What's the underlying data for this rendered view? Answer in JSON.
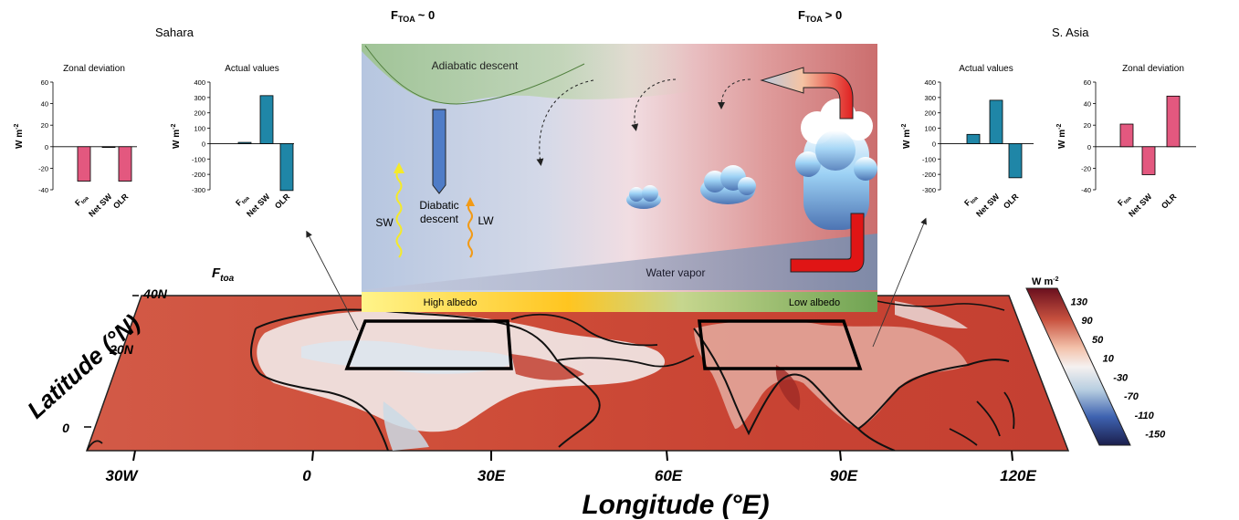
{
  "header": {
    "ftoa_zero": "F",
    "ftoa_zero_sub": "TOA",
    "ftoa_zero_rel": "~ 0",
    "ftoa_pos": "F",
    "ftoa_pos_sub": "TOA",
    "ftoa_pos_rel": ">  0"
  },
  "regions": {
    "left": "Sahara",
    "right": "S. Asia"
  },
  "schematic": {
    "adiabatic": "Adiabatic descent",
    "diabatic_1": "Diabatic",
    "diabatic_2": "descent",
    "sw": "SW",
    "lw": "LW",
    "water_vapor": "Water vapor",
    "high_albedo": "High albedo",
    "low_albedo": "Low albedo",
    "colors": {
      "blue": "#b9c8e0",
      "red": "#cf6d6d",
      "green": "#a9c99b"
    }
  },
  "map": {
    "panel_label": "F",
    "panel_label_sub": "toa",
    "lat_ticks": [
      "40N",
      "20N",
      "0"
    ],
    "lon_ticks": [
      "30W",
      "0",
      "30E",
      "60E",
      "90E",
      "120E"
    ],
    "ylabel": "Latitude (°N)",
    "xlabel": "Longitude (°E)",
    "colorbar": {
      "unit": "W m",
      "unit_sup": "-2",
      "ticks": [
        "130",
        "90",
        "50",
        "10",
        "-30",
        "-70",
        "-110",
        "-150"
      ]
    },
    "colors": {
      "warm": "#d04a37",
      "cool": "#dfe9ef"
    }
  },
  "chart_data": [
    {
      "type": "bar",
      "title": "Zonal deviation",
      "region": "Sahara",
      "ylabel": "W m",
      "ylabel_sup": "-2",
      "categories": [
        "F",
        "Net SW",
        "OLR"
      ],
      "category_subs": [
        "toa",
        "",
        ""
      ],
      "values": [
        -32,
        0,
        -32
      ],
      "colors": [
        "#e3587f",
        "#e3587f",
        "#e3587f"
      ],
      "ylim": [
        -40,
        60
      ],
      "yticks": [
        -40,
        -20,
        0,
        20,
        40,
        60
      ],
      "grid": false
    },
    {
      "type": "bar",
      "title": "Actual values",
      "region": "Sahara",
      "ylabel": "W m",
      "ylabel_sup": "-2",
      "categories": [
        "F",
        "Net SW",
        "OLR"
      ],
      "category_subs": [
        "toa",
        "",
        ""
      ],
      "values": [
        8,
        312,
        -305
      ],
      "colors": [
        "#1f86a7",
        "#1f86a7",
        "#1f86a7"
      ],
      "ylim": [
        -300,
        400
      ],
      "yticks": [
        -300,
        -200,
        -100,
        0,
        100,
        200,
        300,
        400
      ],
      "grid": false
    },
    {
      "type": "bar",
      "title": "Actual values",
      "region": "S. Asia",
      "ylabel": "W m",
      "ylabel_sup": "-2",
      "categories": [
        "F",
        "Net SW",
        "OLR"
      ],
      "category_subs": [
        "toa",
        "",
        ""
      ],
      "values": [
        60,
        282,
        -222
      ],
      "colors": [
        "#1f86a7",
        "#1f86a7",
        "#1f86a7"
      ],
      "ylim": [
        -300,
        400
      ],
      "yticks": [
        -300,
        -200,
        -100,
        0,
        100,
        200,
        300,
        400
      ],
      "grid": false
    },
    {
      "type": "bar",
      "title": "Zonal deviation",
      "region": "S. Asia",
      "ylabel": "W m",
      "ylabel_sup": "-2",
      "categories": [
        "F",
        "Net SW",
        "OLR"
      ],
      "category_subs": [
        "toa",
        "",
        ""
      ],
      "values": [
        21,
        -26,
        47
      ],
      "colors": [
        "#e3587f",
        "#e3587f",
        "#e3587f"
      ],
      "ylim": [
        -40,
        60
      ],
      "yticks": [
        -40,
        -20,
        0,
        20,
        40,
        60
      ],
      "grid": false
    }
  ]
}
